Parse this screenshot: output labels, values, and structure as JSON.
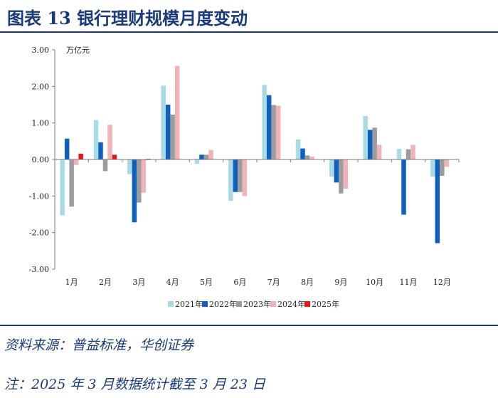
{
  "header": {
    "title": "图表 13   银行理财规模月度变动"
  },
  "footer": {
    "source": "资料来源：普益标准，华创证券",
    "note": "注：2025 年 3 月数据统计截至 3 月 23 日"
  },
  "chart_data": {
    "type": "bar",
    "title": "",
    "unit_label": "万亿元",
    "categories": [
      "1月",
      "2月",
      "3月",
      "4月",
      "5月",
      "6月",
      "7月",
      "8月",
      "9月",
      "10月",
      "11月",
      "12月"
    ],
    "ylim": [
      -3.0,
      3.0
    ],
    "yticks": [
      "3.00",
      "2.00",
      "1.00",
      "0.00",
      "-1.00",
      "-2.00",
      "-3.00"
    ],
    "ytick_values": [
      3,
      2,
      1,
      0,
      -1,
      -2,
      -3
    ],
    "legend_position": "bottom",
    "series": [
      {
        "name": "2021年",
        "color": "#a8dbe6",
        "values": [
          -1.53,
          1.08,
          -0.4,
          2.02,
          -0.12,
          -1.13,
          2.04,
          0.55,
          -0.47,
          1.19,
          0.29,
          -0.47
        ]
      },
      {
        "name": "2022年",
        "color": "#0f5fbd",
        "values": [
          0.57,
          0.47,
          -1.72,
          1.5,
          0.13,
          -0.89,
          1.76,
          0.3,
          -0.63,
          0.81,
          -1.51,
          -2.29
        ]
      },
      {
        "name": "2023年",
        "color": "#9c9c9c",
        "values": [
          -1.29,
          -0.32,
          -1.18,
          1.23,
          0.13,
          -0.89,
          1.49,
          0.11,
          -0.93,
          0.87,
          0.28,
          -0.45
        ]
      },
      {
        "name": "2024年",
        "color": "#f0b4b8",
        "values": [
          -0.15,
          0.95,
          -0.91,
          2.56,
          0.26,
          -1.0,
          1.47,
          0.08,
          -0.8,
          0.4,
          0.4,
          -0.2
        ]
      },
      {
        "name": "2025年",
        "color": "#e8141e",
        "values": [
          0.16,
          0.13,
          0.02,
          null,
          null,
          null,
          null,
          null,
          null,
          null,
          null,
          null
        ]
      }
    ]
  }
}
